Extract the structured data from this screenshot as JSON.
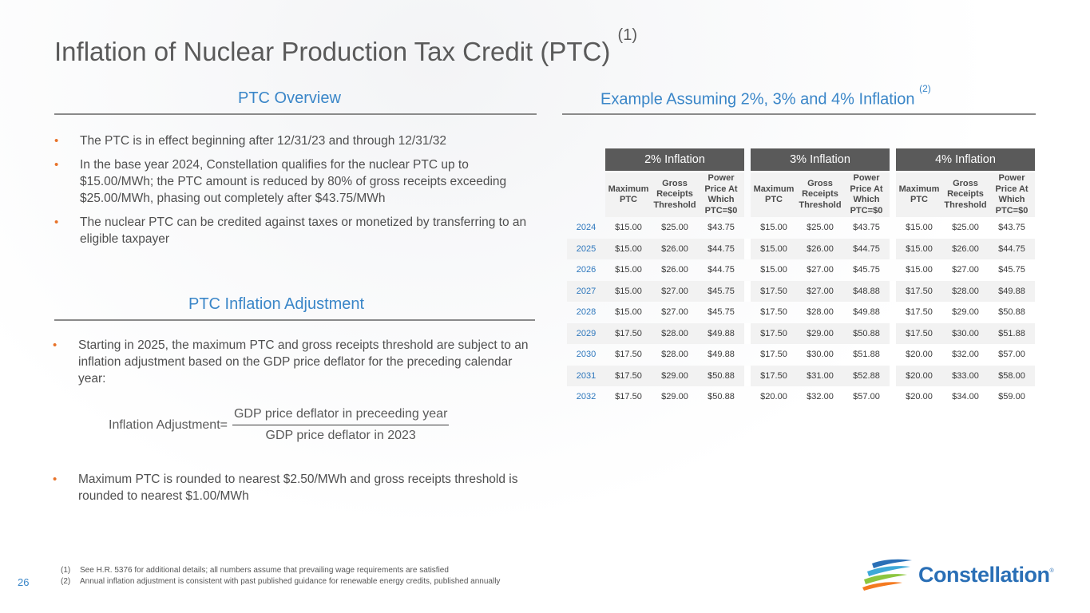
{
  "title": "Inflation of Nuclear Production Tax Credit (PTC)",
  "title_note": "(1)",
  "overview": {
    "heading": "PTC Overview",
    "bullets": [
      "The PTC is in effect beginning after 12/31/23 and through 12/31/32",
      "In the base year 2024, Constellation qualifies for the nuclear PTC up to $15.00/MWh; the PTC amount is reduced by 80% of gross receipts exceeding $25.00/MWh, phasing out completely after $43.75/MWh",
      "The nuclear PTC can be credited against taxes or monetized by transferring to an eligible taxpayer"
    ]
  },
  "adjustment": {
    "heading": "PTC Inflation Adjustment",
    "bullets": [
      "Starting in 2025, the maximum PTC and gross receipts threshold are subject to an inflation adjustment based on the GDP price deflator for the preceding calendar year:",
      "Maximum PTC is rounded to nearest $2.50/MWh and gross receipts threshold is rounded to nearest $1.00/MWh"
    ],
    "formula_label": "Inflation Adjustment=",
    "formula_numerator": "GDP price deflator in preceeding year",
    "formula_denominator": "GDP price deflator in 2023"
  },
  "example": {
    "heading": "Example Assuming 2%, 3% and 4% Inflation",
    "heading_note": "(2)",
    "groups": [
      "2% Inflation",
      "3% Inflation",
      "4% Inflation"
    ],
    "columns": [
      "Maximum PTC",
      "Gross Receipts Threshold",
      "Power Price At Which PTC=$0"
    ],
    "rows": [
      {
        "year": "2024",
        "values": [
          "$15.00",
          "$25.00",
          "$43.75",
          "$15.00",
          "$25.00",
          "$43.75",
          "$15.00",
          "$25.00",
          "$43.75"
        ]
      },
      {
        "year": "2025",
        "values": [
          "$15.00",
          "$26.00",
          "$44.75",
          "$15.00",
          "$26.00",
          "$44.75",
          "$15.00",
          "$26.00",
          "$44.75"
        ]
      },
      {
        "year": "2026",
        "values": [
          "$15.00",
          "$26.00",
          "$44.75",
          "$15.00",
          "$27.00",
          "$45.75",
          "$15.00",
          "$27.00",
          "$45.75"
        ]
      },
      {
        "year": "2027",
        "values": [
          "$15.00",
          "$27.00",
          "$45.75",
          "$17.50",
          "$27.00",
          "$48.88",
          "$17.50",
          "$28.00",
          "$49.88"
        ]
      },
      {
        "year": "2028",
        "values": [
          "$15.00",
          "$27.00",
          "$45.75",
          "$17.50",
          "$28.00",
          "$49.88",
          "$17.50",
          "$29.00",
          "$50.88"
        ]
      },
      {
        "year": "2029",
        "values": [
          "$17.50",
          "$28.00",
          "$49.88",
          "$17.50",
          "$29.00",
          "$50.88",
          "$17.50",
          "$30.00",
          "$51.88"
        ]
      },
      {
        "year": "2030",
        "values": [
          "$17.50",
          "$28.00",
          "$49.88",
          "$17.50",
          "$30.00",
          "$51.88",
          "$20.00",
          "$32.00",
          "$57.00"
        ]
      },
      {
        "year": "2031",
        "values": [
          "$17.50",
          "$29.00",
          "$50.88",
          "$17.50",
          "$31.00",
          "$52.88",
          "$20.00",
          "$33.00",
          "$58.00"
        ]
      },
      {
        "year": "2032",
        "values": [
          "$17.50",
          "$29.00",
          "$50.88",
          "$20.00",
          "$32.00",
          "$57.00",
          "$20.00",
          "$34.00",
          "$59.00"
        ]
      }
    ]
  },
  "footnotes": [
    {
      "marker": "(1)",
      "text": "See H.R. 5376 for additional details; all numbers assume that prevailing wage requirements are satisfied"
    },
    {
      "marker": "(2)",
      "text": "Annual inflation adjustment is consistent with past published guidance for renewable energy credits, published annually"
    }
  ],
  "page_number": "26",
  "logo": {
    "text": "Constellation",
    "mark": "®"
  },
  "colors": {
    "accent_blue": "#3a86c8",
    "bullet_orange": "#e8732a",
    "header_gray": "#5a5a5a"
  }
}
